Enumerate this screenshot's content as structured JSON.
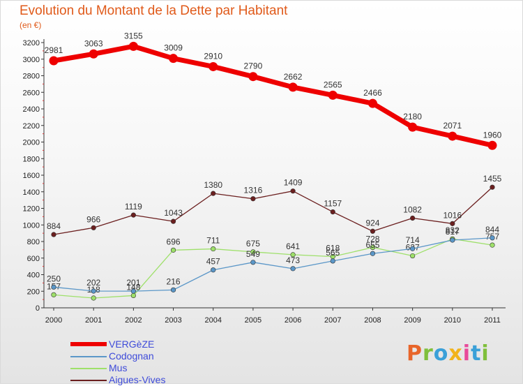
{
  "title": "Evolution du Montant de la Dette par Habitant",
  "unit_label": "(en €)",
  "logo": {
    "text": "Proxiti",
    "colors": [
      "#e8652a",
      "#7fbf3b",
      "#3aa0d8",
      "#f2b31a",
      "#e84a9a",
      "#3aa0d8",
      "#7fbf3b"
    ]
  },
  "chart_data": {
    "type": "line",
    "title": "Evolution du Montant de la Dette par Habitant",
    "ylabel": "(en €)",
    "xlabel": "",
    "x": [
      "2000",
      "2001",
      "2002",
      "2003",
      "2004",
      "2005",
      "2006",
      "2007",
      "2008",
      "2009",
      "2010",
      "2011"
    ],
    "ylim": [
      0,
      3200
    ],
    "yticks": [
      0,
      200,
      400,
      600,
      800,
      1000,
      1200,
      1400,
      1600,
      1800,
      2000,
      2200,
      2400,
      2600,
      2800,
      3000,
      3200
    ],
    "grid": false,
    "legend_position": "bottom-left",
    "series": [
      {
        "name": "Aigues-Vives",
        "color": "#6b1f1f",
        "values": [
          884,
          966,
          1119,
          1043,
          1380,
          1316,
          1409,
          1157,
          924,
          1082,
          1016,
          1455
        ],
        "labels": [
          "884",
          "966",
          "1119",
          "1043",
          "1380",
          "1316",
          "1409",
          "1157",
          "924",
          "1082",
          "1016",
          "1455"
        ]
      },
      {
        "name": "Mus",
        "color": "#9ee06a",
        "values": [
          157,
          118,
          148,
          696,
          711,
          675,
          641,
          618,
          728,
          627,
          832,
          757
        ],
        "labels": [
          "157",
          "118",
          "148",
          "696",
          "711",
          "675",
          "641",
          "618",
          "728",
          "627",
          "832",
          "757"
        ]
      },
      {
        "name": "Codognan",
        "color": "#5b97c8",
        "values": [
          250,
          202,
          201,
          216,
          457,
          549,
          473,
          565,
          655,
          714,
          817,
          844
        ],
        "labels": [
          "250",
          "202",
          "201",
          "216",
          "457",
          "549",
          "473",
          "565",
          "655",
          "714",
          "817",
          "844"
        ]
      },
      {
        "name": "VERGèZE",
        "color": "#ee0000",
        "values": [
          2981,
          3063,
          3155,
          3009,
          2910,
          2790,
          2662,
          2565,
          2466,
          2180,
          2071,
          1960
        ],
        "labels": [
          "2981",
          "3063",
          "3155",
          "3009",
          "2910",
          "2790",
          "2662",
          "2565",
          "2466",
          "2180",
          "2071",
          "1960"
        ]
      }
    ]
  },
  "legend": [
    {
      "label": "VERGèZE",
      "color": "#ee0000"
    },
    {
      "label": "Codognan",
      "color": "#5b97c8"
    },
    {
      "label": "Mus",
      "color": "#9ee06a"
    },
    {
      "label": "Aigues-Vives",
      "color": "#6b1f1f"
    }
  ]
}
